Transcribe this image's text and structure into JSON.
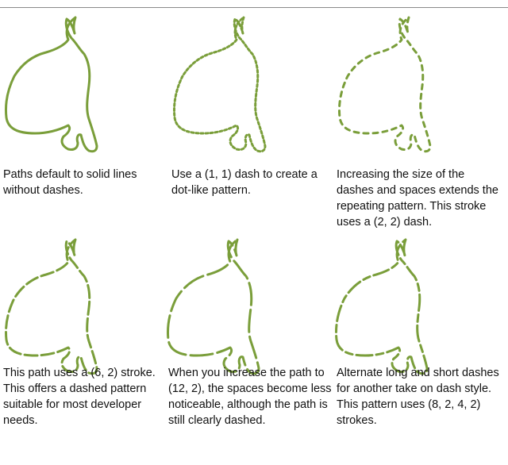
{
  "captions": [
    "Paths default to solid lines without dashes.",
    "Use a (1, 1) dash to create a dot-like pattern.",
    "Increasing the size of the dashes and spaces extends the repeating pattern. This stroke uses a (2, 2) dash.",
    "This path uses a (6, 2) stroke. This offers a dashed pattern suitable for most developer needs.",
    "When you increase the path to (12, 2), the spaces become less noticeable, although the path is still clearly dashed.",
    "Alternate long and short dashes for another take on dash style. This pattern uses (8, 2, 4, 2) strokes."
  ],
  "colors": {
    "stroke": "#7a9e3a",
    "rule": "#8a8a8a"
  }
}
